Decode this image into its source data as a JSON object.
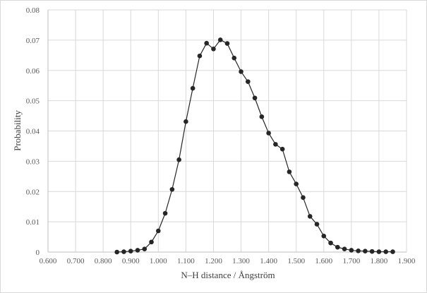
{
  "chart_data": {
    "type": "scatter",
    "title": "",
    "xlabel": "N–H distance / Ångström",
    "ylabel": "Probability",
    "xlim": [
      0.6,
      1.9
    ],
    "ylim": [
      0,
      0.08
    ],
    "x_ticks": [
      "0.600",
      "0.700",
      "0.800",
      "0.900",
      "1.000",
      "1.100",
      "1.200",
      "1.300",
      "1.400",
      "1.500",
      "1.600",
      "1.700",
      "1.800",
      "1.900"
    ],
    "y_ticks": [
      "0",
      "0.01",
      "0.02",
      "0.03",
      "0.04",
      "0.05",
      "0.06",
      "0.07",
      "0.08"
    ],
    "grid": true,
    "legend": "none",
    "colors": {
      "series": "#262626",
      "grid": "#d9d9d9"
    },
    "series": [
      {
        "x": [
          0.85,
          0.875,
          0.9,
          0.925,
          0.95,
          0.975,
          1.0,
          1.025,
          1.05,
          1.075,
          1.1,
          1.125,
          1.15,
          1.175,
          1.2,
          1.225,
          1.25,
          1.275,
          1.3,
          1.325,
          1.35,
          1.375,
          1.4,
          1.425,
          1.45,
          1.475,
          1.5,
          1.525,
          1.55,
          1.575,
          1.6,
          1.625,
          1.65,
          1.675,
          1.7,
          1.725,
          1.75,
          1.775,
          1.8,
          1.825,
          1.85
        ],
        "values": [
          0.0,
          0.0001,
          0.0003,
          0.0006,
          0.001,
          0.0033,
          0.007,
          0.0128,
          0.0207,
          0.0305,
          0.0431,
          0.0541,
          0.0648,
          0.069,
          0.0671,
          0.0701,
          0.0689,
          0.0641,
          0.0596,
          0.0563,
          0.0509,
          0.0447,
          0.0393,
          0.0356,
          0.034,
          0.0265,
          0.0225,
          0.018,
          0.0118,
          0.0092,
          0.0053,
          0.003,
          0.0016,
          0.001,
          0.0006,
          0.0004,
          0.0003,
          0.0002,
          0.0001,
          0.0001,
          0.0001
        ]
      }
    ]
  }
}
